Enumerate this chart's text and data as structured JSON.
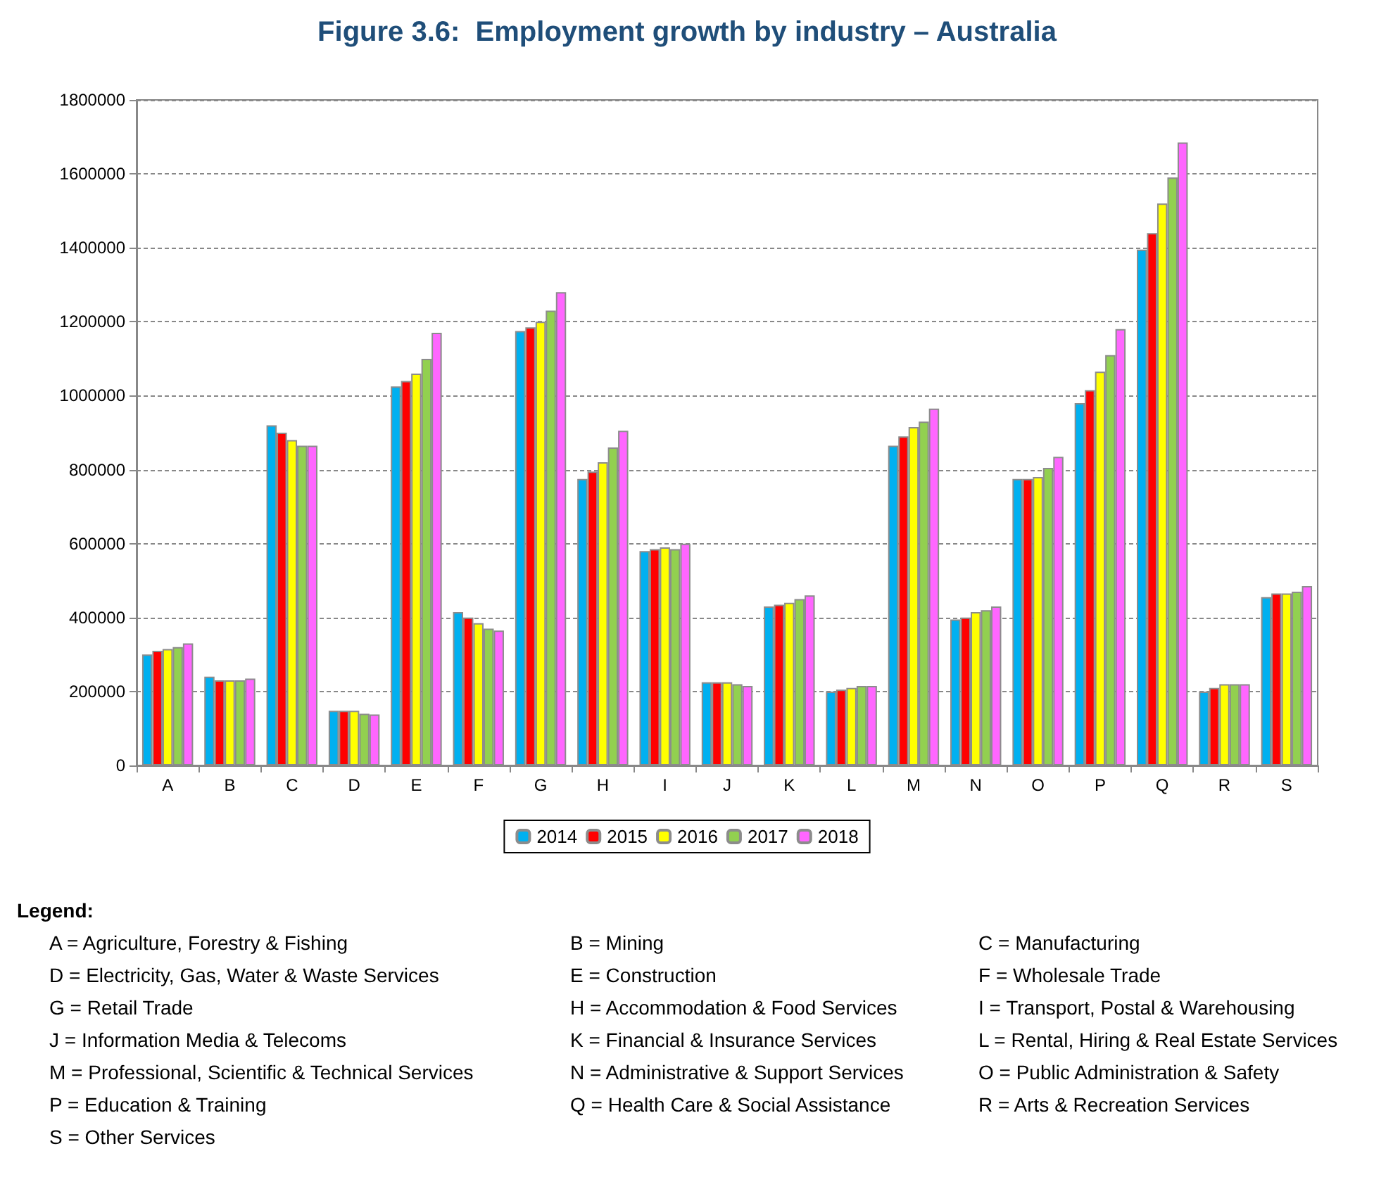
{
  "chart_data": {
    "type": "bar",
    "title": "Figure 3.6:  Employment growth by industry – Australia",
    "categories": [
      "A",
      "B",
      "C",
      "D",
      "E",
      "F",
      "G",
      "H",
      "I",
      "J",
      "K",
      "L",
      "M",
      "N",
      "O",
      "P",
      "Q",
      "R",
      "S"
    ],
    "series": [
      {
        "name": "2014",
        "color": "#00b0f0",
        "values": [
          300000,
          240000,
          920000,
          148000,
          1025000,
          415000,
          1175000,
          775000,
          580000,
          225000,
          430000,
          200000,
          865000,
          395000,
          775000,
          980000,
          1395000,
          200000,
          455000
        ]
      },
      {
        "name": "2015",
        "color": "#ff0000",
        "values": [
          310000,
          230000,
          900000,
          148000,
          1040000,
          400000,
          1185000,
          795000,
          585000,
          225000,
          435000,
          205000,
          890000,
          400000,
          775000,
          1015000,
          1440000,
          210000,
          465000
        ]
      },
      {
        "name": "2016",
        "color": "#ffff00",
        "values": [
          315000,
          230000,
          880000,
          148000,
          1060000,
          385000,
          1200000,
          820000,
          590000,
          225000,
          440000,
          210000,
          915000,
          415000,
          780000,
          1065000,
          1520000,
          220000,
          465000
        ]
      },
      {
        "name": "2017",
        "color": "#92d050",
        "values": [
          320000,
          230000,
          865000,
          140000,
          1100000,
          370000,
          1230000,
          860000,
          585000,
          220000,
          450000,
          215000,
          930000,
          420000,
          805000,
          1110000,
          1590000,
          220000,
          470000
        ]
      },
      {
        "name": "2018",
        "color": "#ff66ff",
        "values": [
          330000,
          235000,
          865000,
          138000,
          1170000,
          365000,
          1280000,
          905000,
          600000,
          215000,
          460000,
          215000,
          965000,
          430000,
          835000,
          1180000,
          1685000,
          220000,
          485000
        ]
      }
    ],
    "ylim": [
      0,
      1800000
    ],
    "yticks": [
      0,
      200000,
      400000,
      600000,
      800000,
      1000000,
      1200000,
      1400000,
      1600000,
      1800000
    ],
    "grid": "y",
    "legend": "bottom",
    "annotations": [
      "Legend:",
      "A = Agriculture, Forestry & Fishing",
      "B = Mining",
      "C = Manufacturing",
      "D = Electricity, Gas, Water & Waste Services",
      "E = Construction",
      "F = Wholesale Trade",
      "G = Retail Trade",
      "H = Accommodation & Food Services",
      "I = Transport, Postal & Warehousing",
      "J = Information Media & Telecoms",
      "K = Financial & Insurance Services",
      "L = Rental, Hiring & Real Estate Services",
      "M = Professional, Scientific & Technical Services",
      "N = Administrative & Support Services",
      "O = Public Administration & Safety",
      "P = Education & Training",
      "Q = Health Care & Social Assistance",
      "R = Arts & Recreation Services",
      "S = Other Services"
    ]
  }
}
